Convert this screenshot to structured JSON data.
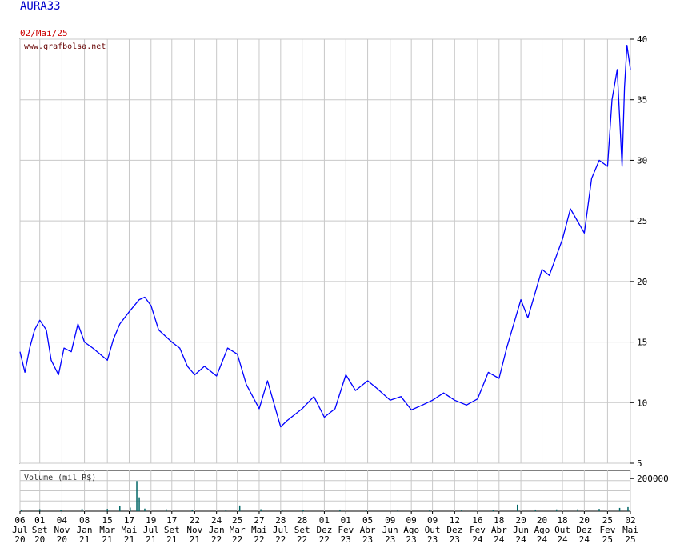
{
  "header": {
    "ticker": "AURA33",
    "date": "02/Mai/25",
    "site": "www.grafbolsa.net"
  },
  "colors": {
    "price_line": "#0000ff",
    "volume_bars": "#006666",
    "grid": "#c8c8c8",
    "title": "#0000cc",
    "date": "#cc0000"
  },
  "chart_data": [
    {
      "type": "line",
      "title": "",
      "series": [
        {
          "values": [
            {
              "x": "2020-07-06",
              "y": 14.2
            },
            {
              "x": "2020-07-20",
              "y": 12.5
            },
            {
              "x": "2020-08-03",
              "y": 14.5
            },
            {
              "x": "2020-08-17",
              "y": 16.0
            },
            {
              "x": "2020-09-01",
              "y": 16.8
            },
            {
              "x": "2020-09-20",
              "y": 16.0
            },
            {
              "x": "2020-10-04",
              "y": 13.5
            },
            {
              "x": "2020-10-25",
              "y": 12.3
            },
            {
              "x": "2020-11-10",
              "y": 14.5
            },
            {
              "x": "2020-12-01",
              "y": 14.2
            },
            {
              "x": "2020-12-20",
              "y": 16.5
            },
            {
              "x": "2021-01-08",
              "y": 15.0
            },
            {
              "x": "2021-02-01",
              "y": 14.5
            },
            {
              "x": "2021-03-15",
              "y": 13.5
            },
            {
              "x": "2021-04-01",
              "y": 15.2
            },
            {
              "x": "2021-04-20",
              "y": 16.5
            },
            {
              "x": "2021-05-17",
              "y": 17.5
            },
            {
              "x": "2021-06-15",
              "y": 18.5
            },
            {
              "x": "2021-07-01",
              "y": 18.7
            },
            {
              "x": "2021-07-19",
              "y": 18.0
            },
            {
              "x": "2021-08-10",
              "y": 16.0
            },
            {
              "x": "2021-09-17",
              "y": 15.0
            },
            {
              "x": "2021-10-10",
              "y": 14.5
            },
            {
              "x": "2021-11-01",
              "y": 13.0
            },
            {
              "x": "2021-11-22",
              "y": 12.3
            },
            {
              "x": "2021-12-20",
              "y": 13.0
            },
            {
              "x": "2022-01-24",
              "y": 12.2
            },
            {
              "x": "2022-02-25",
              "y": 14.5
            },
            {
              "x": "2022-03-25",
              "y": 14.0
            },
            {
              "x": "2022-04-20",
              "y": 11.5
            },
            {
              "x": "2022-05-27",
              "y": 9.5
            },
            {
              "x": "2022-06-20",
              "y": 11.8
            },
            {
              "x": "2022-07-28",
              "y": 8.0
            },
            {
              "x": "2022-08-15",
              "y": 8.5
            },
            {
              "x": "2022-09-28",
              "y": 9.5
            },
            {
              "x": "2022-11-01",
              "y": 10.5
            },
            {
              "x": "2022-12-01",
              "y": 8.8
            },
            {
              "x": "2023-01-01",
              "y": 9.5
            },
            {
              "x": "2023-02-01",
              "y": 12.3
            },
            {
              "x": "2023-03-01",
              "y": 11.0
            },
            {
              "x": "2023-04-05",
              "y": 11.8
            },
            {
              "x": "2023-05-01",
              "y": 11.2
            },
            {
              "x": "2023-06-09",
              "y": 10.2
            },
            {
              "x": "2023-07-10",
              "y": 10.5
            },
            {
              "x": "2023-08-09",
              "y": 9.4
            },
            {
              "x": "2023-09-10",
              "y": 9.8
            },
            {
              "x": "2023-10-09",
              "y": 10.2
            },
            {
              "x": "2023-11-10",
              "y": 10.8
            },
            {
              "x": "2023-12-12",
              "y": 10.2
            },
            {
              "x": "2024-01-15",
              "y": 9.8
            },
            {
              "x": "2024-02-16",
              "y": 10.3
            },
            {
              "x": "2024-03-18",
              "y": 12.5
            },
            {
              "x": "2024-04-18",
              "y": 12.0
            },
            {
              "x": "2024-05-10",
              "y": 14.5
            },
            {
              "x": "2024-06-20",
              "y": 18.5
            },
            {
              "x": "2024-07-10",
              "y": 17.0
            },
            {
              "x": "2024-08-20",
              "y": 21.0
            },
            {
              "x": "2024-09-10",
              "y": 20.5
            },
            {
              "x": "2024-10-18",
              "y": 23.5
            },
            {
              "x": "2024-11-10",
              "y": 26.0
            },
            {
              "x": "2024-12-20",
              "y": 24.0
            },
            {
              "x": "2025-01-10",
              "y": 28.5
            },
            {
              "x": "2025-02-01",
              "y": 30.0
            },
            {
              "x": "2025-02-25",
              "y": 29.5
            },
            {
              "x": "2025-03-10",
              "y": 35.0
            },
            {
              "x": "2025-03-25",
              "y": 37.5
            },
            {
              "x": "2025-04-08",
              "y": 29.5
            },
            {
              "x": "2025-04-15",
              "y": 36.0
            },
            {
              "x": "2025-04-22",
              "y": 39.5
            },
            {
              "x": "2025-05-02",
              "y": 37.5
            }
          ]
        }
      ],
      "ylim": [
        5,
        40
      ],
      "yticks": [
        5,
        10,
        15,
        20,
        25,
        30,
        35,
        40
      ],
      "xlim": [
        "2020-07-06",
        "2025-05-02"
      ],
      "grid": true
    },
    {
      "type": "bar",
      "title": "Volume (mil R$)",
      "yticks": [
        200000
      ],
      "values": [
        {
          "x": "2020-07-10",
          "y": 10000
        },
        {
          "x": "2020-09-01",
          "y": 12000
        },
        {
          "x": "2020-11-01",
          "y": 9000
        },
        {
          "x": "2021-01-01",
          "y": 15000
        },
        {
          "x": "2021-03-15",
          "y": 14000
        },
        {
          "x": "2021-04-20",
          "y": 30000
        },
        {
          "x": "2021-05-20",
          "y": 22000
        },
        {
          "x": "2021-06-08",
          "y": 185000
        },
        {
          "x": "2021-06-15",
          "y": 85000
        },
        {
          "x": "2021-07-01",
          "y": 16000
        },
        {
          "x": "2021-09-01",
          "y": 12000
        },
        {
          "x": "2021-11-15",
          "y": 10000
        },
        {
          "x": "2022-02-20",
          "y": 8000
        },
        {
          "x": "2022-04-01",
          "y": 35000
        },
        {
          "x": "2022-06-01",
          "y": 12000
        },
        {
          "x": "2022-08-01",
          "y": 8000
        },
        {
          "x": "2022-10-01",
          "y": 9000
        },
        {
          "x": "2023-01-15",
          "y": 10000
        },
        {
          "x": "2023-04-01",
          "y": 7000
        },
        {
          "x": "2023-07-01",
          "y": 8000
        },
        {
          "x": "2023-10-01",
          "y": 7000
        },
        {
          "x": "2024-01-01",
          "y": 6000
        },
        {
          "x": "2024-04-01",
          "y": 8000
        },
        {
          "x": "2024-06-10",
          "y": 40000
        },
        {
          "x": "2024-08-01",
          "y": 10000
        },
        {
          "x": "2024-10-01",
          "y": 11000
        },
        {
          "x": "2024-12-01",
          "y": 12000
        },
        {
          "x": "2025-02-01",
          "y": 14000
        },
        {
          "x": "2025-04-01",
          "y": 20000
        },
        {
          "x": "2025-04-25",
          "y": 25000
        }
      ],
      "ylim": [
        0,
        250000
      ],
      "grid": true
    }
  ],
  "xaxis": {
    "ticks": [
      {
        "date": "2020-07-06",
        "day": "06",
        "month": "Jul",
        "year": "20"
      },
      {
        "date": "2020-09-01",
        "day": "01",
        "month": "Set",
        "year": "20"
      },
      {
        "date": "2020-11-04",
        "day": "04",
        "month": "Nov",
        "year": "20"
      },
      {
        "date": "2021-01-08",
        "day": "08",
        "month": "Jan",
        "year": "21"
      },
      {
        "date": "2021-03-15",
        "day": "15",
        "month": "Mar",
        "year": "21"
      },
      {
        "date": "2021-05-17",
        "day": "17",
        "month": "Mai",
        "year": "21"
      },
      {
        "date": "2021-07-19",
        "day": "19",
        "month": "Jul",
        "year": "21"
      },
      {
        "date": "2021-09-17",
        "day": "17",
        "month": "Set",
        "year": "21"
      },
      {
        "date": "2021-11-22",
        "day": "22",
        "month": "Nov",
        "year": "21"
      },
      {
        "date": "2022-01-24",
        "day": "24",
        "month": "Jan",
        "year": "22"
      },
      {
        "date": "2022-03-25",
        "day": "25",
        "month": "Mar",
        "year": "22"
      },
      {
        "date": "2022-05-27",
        "day": "27",
        "month": "Mai",
        "year": "22"
      },
      {
        "date": "2022-07-28",
        "day": "28",
        "month": "Jul",
        "year": "22"
      },
      {
        "date": "2022-09-28",
        "day": "28",
        "month": "Set",
        "year": "22"
      },
      {
        "date": "2022-12-01",
        "day": "01",
        "month": "Dez",
        "year": "22"
      },
      {
        "date": "2023-02-01",
        "day": "01",
        "month": "Fev",
        "year": "23"
      },
      {
        "date": "2023-04-05",
        "day": "05",
        "month": "Abr",
        "year": "23"
      },
      {
        "date": "2023-06-09",
        "day": "09",
        "month": "Jun",
        "year": "23"
      },
      {
        "date": "2023-08-09",
        "day": "09",
        "month": "Ago",
        "year": "23"
      },
      {
        "date": "2023-10-09",
        "day": "09",
        "month": "Out",
        "year": "23"
      },
      {
        "date": "2023-12-12",
        "day": "12",
        "month": "Dez",
        "year": "23"
      },
      {
        "date": "2024-02-16",
        "day": "16",
        "month": "Fev",
        "year": "24"
      },
      {
        "date": "2024-04-18",
        "day": "18",
        "month": "Abr",
        "year": "24"
      },
      {
        "date": "2024-06-20",
        "day": "20",
        "month": "Jun",
        "year": "24"
      },
      {
        "date": "2024-08-20",
        "day": "20",
        "month": "Ago",
        "year": "24"
      },
      {
        "date": "2024-10-18",
        "day": "18",
        "month": "Out",
        "year": "24"
      },
      {
        "date": "2024-12-20",
        "day": "20",
        "month": "Dez",
        "year": "24"
      },
      {
        "date": "2025-02-25",
        "day": "25",
        "month": "Fev",
        "year": "25"
      },
      {
        "date": "2025-05-02",
        "day": "02",
        "month": "Mai",
        "year": "25"
      }
    ]
  }
}
